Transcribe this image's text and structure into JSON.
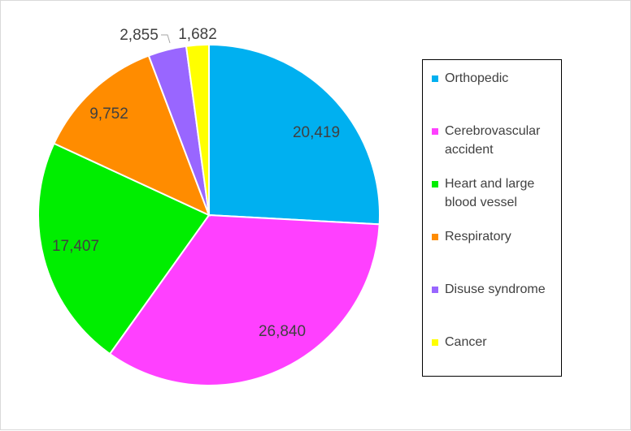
{
  "chart_data": {
    "type": "pie",
    "title": "",
    "categories": [
      "Orthopedic",
      "Cerebrovascular accident",
      "Heart and large blood vessel",
      "Respiratory",
      "Disuse syndrome",
      "Cancer"
    ],
    "values": [
      20419,
      26840,
      17407,
      9752,
      2855,
      1682
    ],
    "labels": [
      "20,419",
      "26,840",
      "17,407",
      "9,752",
      "2,855",
      "1,682"
    ],
    "colors": [
      "#00b0f0",
      "#ff40ff",
      "#00ee00",
      "#ff8c00",
      "#9966ff",
      "#ffff00"
    ],
    "legend_position": "right"
  }
}
